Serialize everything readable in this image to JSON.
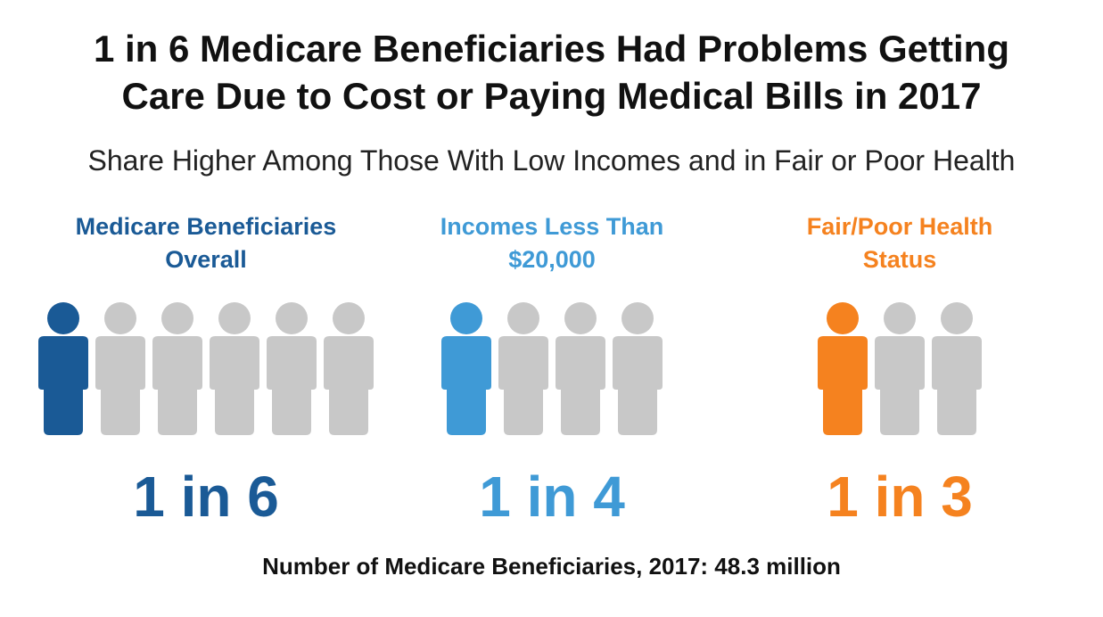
{
  "title": "1 in 6 Medicare Beneficiaries Had Problems Getting Care Due to Cost or Paying Medical Bills in 2017",
  "subtitle": "Share Higher Among Those With Low Incomes and in Fair or Poor Health",
  "groups": [
    {
      "label": "Medicare Beneficiaries Overall",
      "stat": "1 in 6",
      "color": "#1a5a96",
      "icon_count": 6,
      "highlighted_count": 1
    },
    {
      "label": "Incomes Less Than $20,000",
      "stat": "1 in 4",
      "color": "#3f9ad6",
      "icon_count": 4,
      "highlighted_count": 1
    },
    {
      "label": "Fair/Poor Health Status",
      "stat": "1 in 3",
      "color": "#f5821f",
      "icon_count": 3,
      "highlighted_count": 1
    }
  ],
  "icon_color": "#c8c8c8",
  "footer": "Number of Medicare Beneficiaries, 2017: 48.3 million"
}
